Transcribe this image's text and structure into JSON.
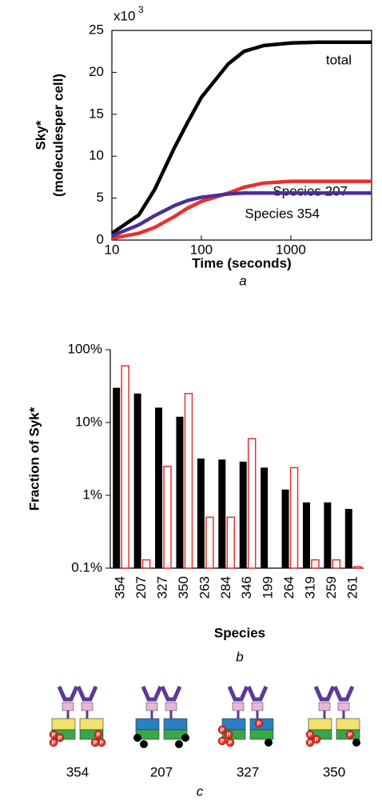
{
  "chart_data": [
    {
      "type": "line",
      "x_log": true,
      "ylabel": [
        "Sky*",
        "(moleculesper cell)"
      ],
      "xlabel": "Time (seconds)",
      "y_scale_base": "x10",
      "y_scale_exponent": "3",
      "caption": "a",
      "x": [
        10,
        20,
        30,
        50,
        70,
        100,
        200,
        300,
        500,
        1000,
        2000,
        4000,
        8000
      ],
      "series": [
        {
          "name": "total",
          "color": "#000000",
          "values": [
            0.8,
            3,
            6,
            11,
            14,
            17,
            21,
            22.5,
            23.2,
            23.5,
            23.6,
            23.6,
            23.6
          ]
        },
        {
          "name": "Species 207",
          "color": "#e8302c",
          "values": [
            0.2,
            0.8,
            1.5,
            2.8,
            3.8,
            4.6,
            5.6,
            6.3,
            6.8,
            7,
            7,
            7,
            7
          ]
        },
        {
          "name": "Species 354",
          "color": "#4b2f9a",
          "values": [
            0.5,
            1.8,
            2.9,
            4.1,
            4.7,
            5.1,
            5.5,
            5.6,
            5.6,
            5.6,
            5.6,
            5.6,
            5.6
          ]
        }
      ],
      "xlim": [
        10,
        8000
      ],
      "xticks": [
        10,
        100,
        1000
      ],
      "ylim": [
        0,
        25
      ],
      "yticks": [
        0,
        5,
        10,
        15,
        20,
        25
      ]
    },
    {
      "type": "bar",
      "y_log": true,
      "ylabel": "Fraction of Syk*",
      "xlabel": "Species",
      "caption": "b",
      "categories": [
        "354",
        "207",
        "327",
        "350",
        "263",
        "284",
        "346",
        "199",
        "264",
        "319",
        "259",
        "261"
      ],
      "series": [
        {
          "color": "#000000",
          "hollow": false,
          "values": [
            30,
            25,
            16,
            12,
            3.2,
            3.1,
            2.9,
            2.4,
            1.2,
            0.8,
            0.8,
            0.65
          ]
        },
        {
          "color": "#e8302c",
          "hollow": true,
          "values": [
            60,
            0.13,
            2.5,
            25,
            0.5,
            0.5,
            6,
            null,
            2.4,
            0.13,
            0.13,
            0.105
          ]
        }
      ],
      "ylim": [
        0.1,
        100
      ],
      "yticks": [
        {
          "value": 0.1,
          "label": "0.1%"
        },
        {
          "value": 1,
          "label": "1%"
        },
        {
          "value": 10,
          "label": "10%"
        },
        {
          "value": 100,
          "label": "100%"
        }
      ]
    }
  ],
  "diagram": {
    "phospho_label": "P",
    "caption": "c",
    "complexes": [
      {
        "label": "354"
      },
      {
        "label": "207"
      },
      {
        "label": "327"
      },
      {
        "label": "350"
      }
    ]
  }
}
